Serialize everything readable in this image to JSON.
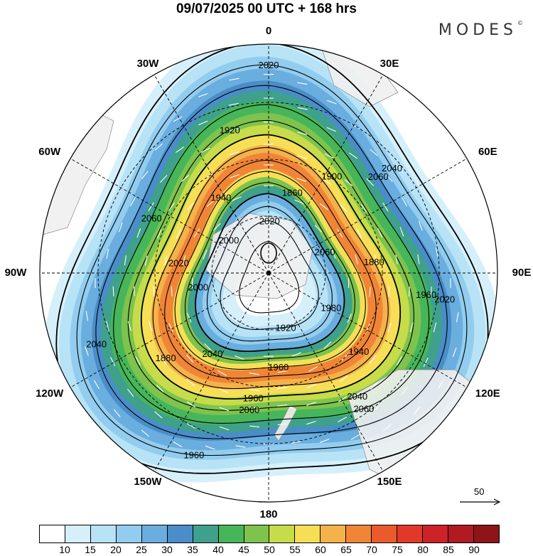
{
  "header": {
    "title": "09/07/2025  00 UTC  + 168 hrs",
    "brand": "MODES",
    "brand_mark": "©"
  },
  "longitude_labels": [
    {
      "id": "0",
      "text": "0",
      "lon": 0
    },
    {
      "id": "30e",
      "text": "30E",
      "lon": 30
    },
    {
      "id": "60e",
      "text": "60E",
      "lon": 60
    },
    {
      "id": "90e",
      "text": "90E",
      "lon": 90
    },
    {
      "id": "120e",
      "text": "120E",
      "lon": 120
    },
    {
      "id": "150e",
      "text": "150E",
      "lon": 150
    },
    {
      "id": "180",
      "text": "180",
      "lon": 180
    },
    {
      "id": "150w",
      "text": "150W",
      "lon": -150
    },
    {
      "id": "120w",
      "text": "120W",
      "lon": -120
    },
    {
      "id": "90w",
      "text": "90W",
      "lon": -90
    },
    {
      "id": "60w",
      "text": "60W",
      "lon": -60
    },
    {
      "id": "30w",
      "text": "30W",
      "lon": -30
    }
  ],
  "contour_labels": [
    {
      "text": "2020"
    },
    {
      "text": "2060"
    },
    {
      "text": "1960"
    },
    {
      "text": "2040"
    },
    {
      "text": "1960"
    },
    {
      "text": "1880"
    },
    {
      "text": "2020"
    },
    {
      "text": "1940"
    },
    {
      "text": "1860"
    },
    {
      "text": "2060"
    },
    {
      "text": "1980"
    },
    {
      "text": "1920"
    },
    {
      "text": "1960"
    },
    {
      "text": "2040"
    },
    {
      "text": "2060"
    },
    {
      "text": "1920"
    },
    {
      "text": "1900"
    },
    {
      "text": "1880"
    },
    {
      "text": "1940"
    },
    {
      "text": "1960"
    },
    {
      "text": "2040"
    },
    {
      "text": "2000"
    },
    {
      "text": "2000"
    },
    {
      "text": "2020"
    },
    {
      "text": "2040"
    },
    {
      "text": "2020"
    },
    {
      "text": "2060"
    },
    {
      "text": "2060"
    }
  ],
  "colorbar": {
    "colors": [
      "#ffffff",
      "#d6f0fb",
      "#b8e3f7",
      "#92cdef",
      "#6aaedf",
      "#4a8dc9",
      "#3fa08c",
      "#47b55a",
      "#7ec34e",
      "#c6dc4a",
      "#f6df57",
      "#f4b24a",
      "#f08537",
      "#ea5a2c",
      "#e0392a",
      "#cc2228",
      "#b21a22",
      "#8e1418"
    ],
    "labels": [
      "10",
      "15",
      "20",
      "25",
      "30",
      "35",
      "40",
      "45",
      "50",
      "55",
      "60",
      "65",
      "70",
      "75",
      "80",
      "85",
      "90"
    ]
  },
  "reference_vector": {
    "label": "50"
  },
  "colors": {
    "land": "#f2f2f2",
    "coast": "#777777",
    "contour": "#000000",
    "wind_arrow": "#ffffff"
  }
}
